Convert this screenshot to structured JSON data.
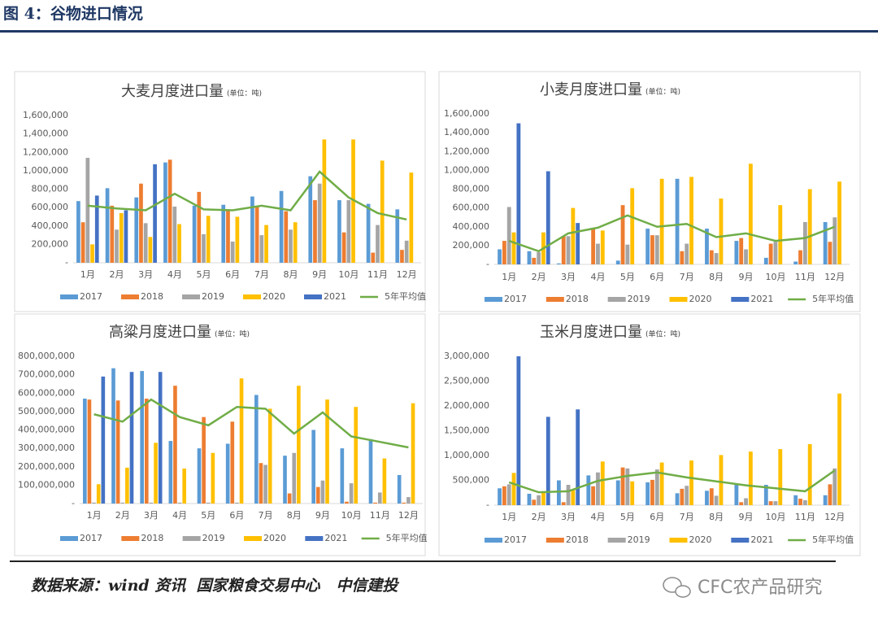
{
  "header": {
    "title": "图 4：谷物进口情况"
  },
  "footer": {
    "source": "数据来源：wind 资讯  国家粮食交易中心   中信建投",
    "watermark": "CFC农产品研究"
  },
  "chart_data": [
    {
      "type": "bar",
      "title": "大麦月度进口量",
      "subtitle": "(单位：吨)",
      "categories": [
        "1月",
        "2月",
        "3月",
        "4月",
        "5月",
        "6月",
        "7月",
        "8月",
        "9月",
        "10月",
        "11月",
        "12月"
      ],
      "ylim": [
        0,
        1600000
      ],
      "yticks": [
        {
          "value": 0,
          "label": "-"
        },
        {
          "value": 200000,
          "label": "200,000"
        },
        {
          "value": 400000,
          "label": "400,000"
        },
        {
          "value": 600000,
          "label": "600,000"
        },
        {
          "value": 800000,
          "label": "800,000"
        },
        {
          "value": 1000000,
          "label": "1,000,000"
        },
        {
          "value": 1200000,
          "label": "1,200,000"
        },
        {
          "value": 1400000,
          "label": "1,400,000"
        },
        {
          "value": 1600000,
          "label": "1,600,000"
        }
      ],
      "series": [
        {
          "name": "2017",
          "color": "#5b9bd5",
          "values": [
            670000,
            810000,
            710000,
            1090000,
            620000,
            630000,
            720000,
            780000,
            940000,
            680000,
            640000,
            580000
          ]
        },
        {
          "name": "2018",
          "color": "#ed7d31",
          "values": [
            440000,
            620000,
            860000,
            1120000,
            770000,
            580000,
            610000,
            560000,
            680000,
            330000,
            110000,
            140000
          ]
        },
        {
          "name": "2019",
          "color": "#a5a5a5",
          "values": [
            1140000,
            360000,
            430000,
            610000,
            310000,
            230000,
            300000,
            360000,
            860000,
            680000,
            410000,
            240000
          ]
        },
        {
          "name": "2020",
          "color": "#ffc000",
          "values": [
            200000,
            540000,
            280000,
            420000,
            510000,
            500000,
            410000,
            440000,
            1340000,
            1340000,
            1110000,
            980000
          ]
        },
        {
          "name": "2021",
          "color": "#4472c4",
          "values": [
            730000,
            570000,
            1070000,
            null,
            null,
            null,
            null,
            null,
            null,
            null,
            null,
            null
          ]
        },
        {
          "name": "5年平均值",
          "color": "#70ad47",
          "type": "line",
          "values": [
            620000,
            590000,
            570000,
            750000,
            580000,
            570000,
            620000,
            570000,
            990000,
            710000,
            540000,
            470000
          ]
        }
      ]
    },
    {
      "type": "bar",
      "title": "小麦月度进口量",
      "subtitle": "(单位：吨)",
      "categories": [
        "1月",
        "2月",
        "3月",
        "4月",
        "5月",
        "6月",
        "7月",
        "8月",
        "9月",
        "10月",
        "11月",
        "12月"
      ],
      "ylim": [
        0,
        1600000
      ],
      "yticks": [
        {
          "value": 0,
          "label": "-"
        },
        {
          "value": 200000,
          "label": "200,000"
        },
        {
          "value": 400000,
          "label": "400,000"
        },
        {
          "value": 600000,
          "label": "600,000"
        },
        {
          "value": 800000,
          "label": "800,000"
        },
        {
          "value": 1000000,
          "label": "1,000,000"
        },
        {
          "value": 1200000,
          "label": "1,200,000"
        },
        {
          "value": 1400000,
          "label": "1,400,000"
        },
        {
          "value": 1600000,
          "label": "1,600,000"
        }
      ],
      "series": [
        {
          "name": "2017",
          "color": "#5b9bd5",
          "values": [
            160000,
            140000,
            10000,
            0,
            40000,
            380000,
            910000,
            380000,
            250000,
            70000,
            30000,
            450000
          ]
        },
        {
          "name": "2018",
          "color": "#ed7d31",
          "values": [
            250000,
            70000,
            300000,
            380000,
            630000,
            310000,
            140000,
            150000,
            280000,
            220000,
            150000,
            240000
          ]
        },
        {
          "name": "2019",
          "color": "#a5a5a5",
          "values": [
            610000,
            130000,
            300000,
            220000,
            210000,
            310000,
            220000,
            120000,
            160000,
            240000,
            450000,
            500000
          ]
        },
        {
          "name": "2020",
          "color": "#ffc000",
          "values": [
            340000,
            340000,
            600000,
            360000,
            810000,
            910000,
            930000,
            700000,
            1070000,
            630000,
            800000,
            880000
          ]
        },
        {
          "name": "2021",
          "color": "#4472c4",
          "values": [
            1500000,
            990000,
            440000,
            null,
            null,
            null,
            null,
            null,
            null,
            null,
            null,
            null
          ]
        },
        {
          "name": "5年平均值",
          "color": "#70ad47",
          "type": "line",
          "values": [
            250000,
            140000,
            330000,
            390000,
            520000,
            400000,
            430000,
            290000,
            330000,
            250000,
            280000,
            400000
          ]
        }
      ]
    },
    {
      "type": "bar",
      "title": "高粱月度进口量",
      "subtitle": "(单位：吨)",
      "categories": [
        "1月",
        "2月",
        "3月",
        "4月",
        "5月",
        "6月",
        "7月",
        "8月",
        "9月",
        "10月",
        "11月",
        "12月"
      ],
      "ylim": [
        0,
        800000000
      ],
      "yticks": [
        {
          "value": 0,
          "label": "-"
        },
        {
          "value": 100000000,
          "label": "100,000,000"
        },
        {
          "value": 200000000,
          "label": "200,000,000"
        },
        {
          "value": 300000000,
          "label": "300,000,000"
        },
        {
          "value": 400000000,
          "label": "400,000,000"
        },
        {
          "value": 500000000,
          "label": "500,000,000"
        },
        {
          "value": 600000000,
          "label": "600,000,000"
        },
        {
          "value": 700000000,
          "label": "700,000,000"
        },
        {
          "value": 800000000,
          "label": "800,000,000"
        }
      ],
      "series": [
        {
          "name": "2017",
          "color": "#5b9bd5",
          "values": [
            570000000,
            735000000,
            720000000,
            340000000,
            300000000,
            325000000,
            590000000,
            260000000,
            400000000,
            300000000,
            350000000,
            155000000
          ]
        },
        {
          "name": "2018",
          "color": "#ed7d31",
          "values": [
            565000000,
            560000000,
            570000000,
            640000000,
            470000000,
            445000000,
            220000000,
            55000000,
            90000000,
            10000000,
            5000000,
            5000000
          ]
        },
        {
          "name": "2019",
          "color": "#a5a5a5",
          "values": [
            5000000,
            5000000,
            5000000,
            5000000,
            5000000,
            5000000,
            210000000,
            275000000,
            125000000,
            110000000,
            60000000,
            35000000
          ]
        },
        {
          "name": "2020",
          "color": "#ffc000",
          "values": [
            105000000,
            195000000,
            330000000,
            190000000,
            275000000,
            680000000,
            515000000,
            640000000,
            565000000,
            525000000,
            245000000,
            545000000
          ]
        },
        {
          "name": "2021",
          "color": "#4472c4",
          "values": [
            690000000,
            715000000,
            715000000,
            null,
            null,
            null,
            null,
            null,
            null,
            null,
            null,
            null
          ]
        },
        {
          "name": "5年平均值",
          "color": "#70ad47",
          "type": "line",
          "values": [
            485000000,
            445000000,
            565000000,
            470000000,
            425000000,
            525000000,
            515000000,
            380000000,
            495000000,
            365000000,
            335000000,
            305000000
          ]
        }
      ]
    },
    {
      "type": "bar",
      "title": "玉米月度进口量",
      "subtitle": "(单位：吨)",
      "categories": [
        "1月",
        "2月",
        "3月",
        "4月",
        "5月",
        "6月",
        "7月",
        "8月",
        "9月",
        "10月",
        "11月",
        "12月"
      ],
      "ylim": [
        0,
        3000000
      ],
      "yticks": [
        {
          "value": 0,
          "label": "-"
        },
        {
          "value": 500000,
          "label": "500,000"
        },
        {
          "value": 1000000,
          "label": "1,000,000"
        },
        {
          "value": 1500000,
          "label": "1,500,000"
        },
        {
          "value": 2000000,
          "label": "2,000,000"
        },
        {
          "value": 2500000,
          "label": "2,500,000"
        },
        {
          "value": 3000000,
          "label": "3,000,000"
        }
      ],
      "series": [
        {
          "name": "2017",
          "color": "#5b9bd5",
          "values": [
            340000,
            230000,
            500000,
            600000,
            500000,
            460000,
            240000,
            290000,
            410000,
            410000,
            200000,
            200000
          ]
        },
        {
          "name": "2018",
          "color": "#ed7d31",
          "values": [
            380000,
            110000,
            60000,
            380000,
            760000,
            510000,
            330000,
            340000,
            60000,
            80000,
            130000,
            420000
          ]
        },
        {
          "name": "2019",
          "color": "#a5a5a5",
          "values": [
            420000,
            200000,
            410000,
            660000,
            740000,
            720000,
            390000,
            190000,
            140000,
            80000,
            100000,
            740000
          ]
        },
        {
          "name": "2020",
          "color": "#ffc000",
          "values": [
            650000,
            270000,
            310000,
            880000,
            480000,
            860000,
            900000,
            1010000,
            1080000,
            1130000,
            1230000,
            2250000
          ]
        },
        {
          "name": "2021",
          "color": "#4472c4",
          "values": [
            3000000,
            1780000,
            1930000,
            null,
            null,
            null,
            null,
            null,
            null,
            null,
            null,
            null
          ]
        },
        {
          "name": "5年平均值",
          "color": "#70ad47",
          "type": "line",
          "values": [
            460000,
            260000,
            280000,
            490000,
            590000,
            660000,
            560000,
            480000,
            400000,
            340000,
            280000,
            700000
          ]
        }
      ]
    }
  ]
}
